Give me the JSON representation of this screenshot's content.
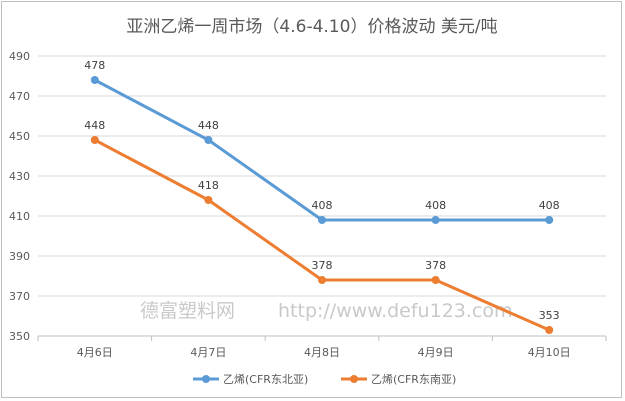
{
  "chart_data": {
    "type": "line",
    "title": "亚洲乙烯一周市场（4.6-4.10）价格波动    美元/吨",
    "categories": [
      "4月6日",
      "4月7日",
      "4月8日",
      "4月9日",
      "4月10日"
    ],
    "series": [
      {
        "name": "乙烯(CFR东北亚)",
        "color": "#5B9BD5",
        "values": [
          478,
          448,
          408,
          408,
          408
        ]
      },
      {
        "name": "乙烯(CFR东南亚)",
        "color": "#ED7D31",
        "values": [
          448,
          418,
          378,
          378,
          353
        ]
      }
    ],
    "ylim": [
      350,
      490
    ],
    "yticks": [
      350,
      370,
      390,
      410,
      430,
      450,
      470,
      490
    ],
    "grid": true,
    "legend": "bottom"
  },
  "watermark": {
    "cn": "德富塑料网",
    "url": "http://www.defu123.com"
  }
}
